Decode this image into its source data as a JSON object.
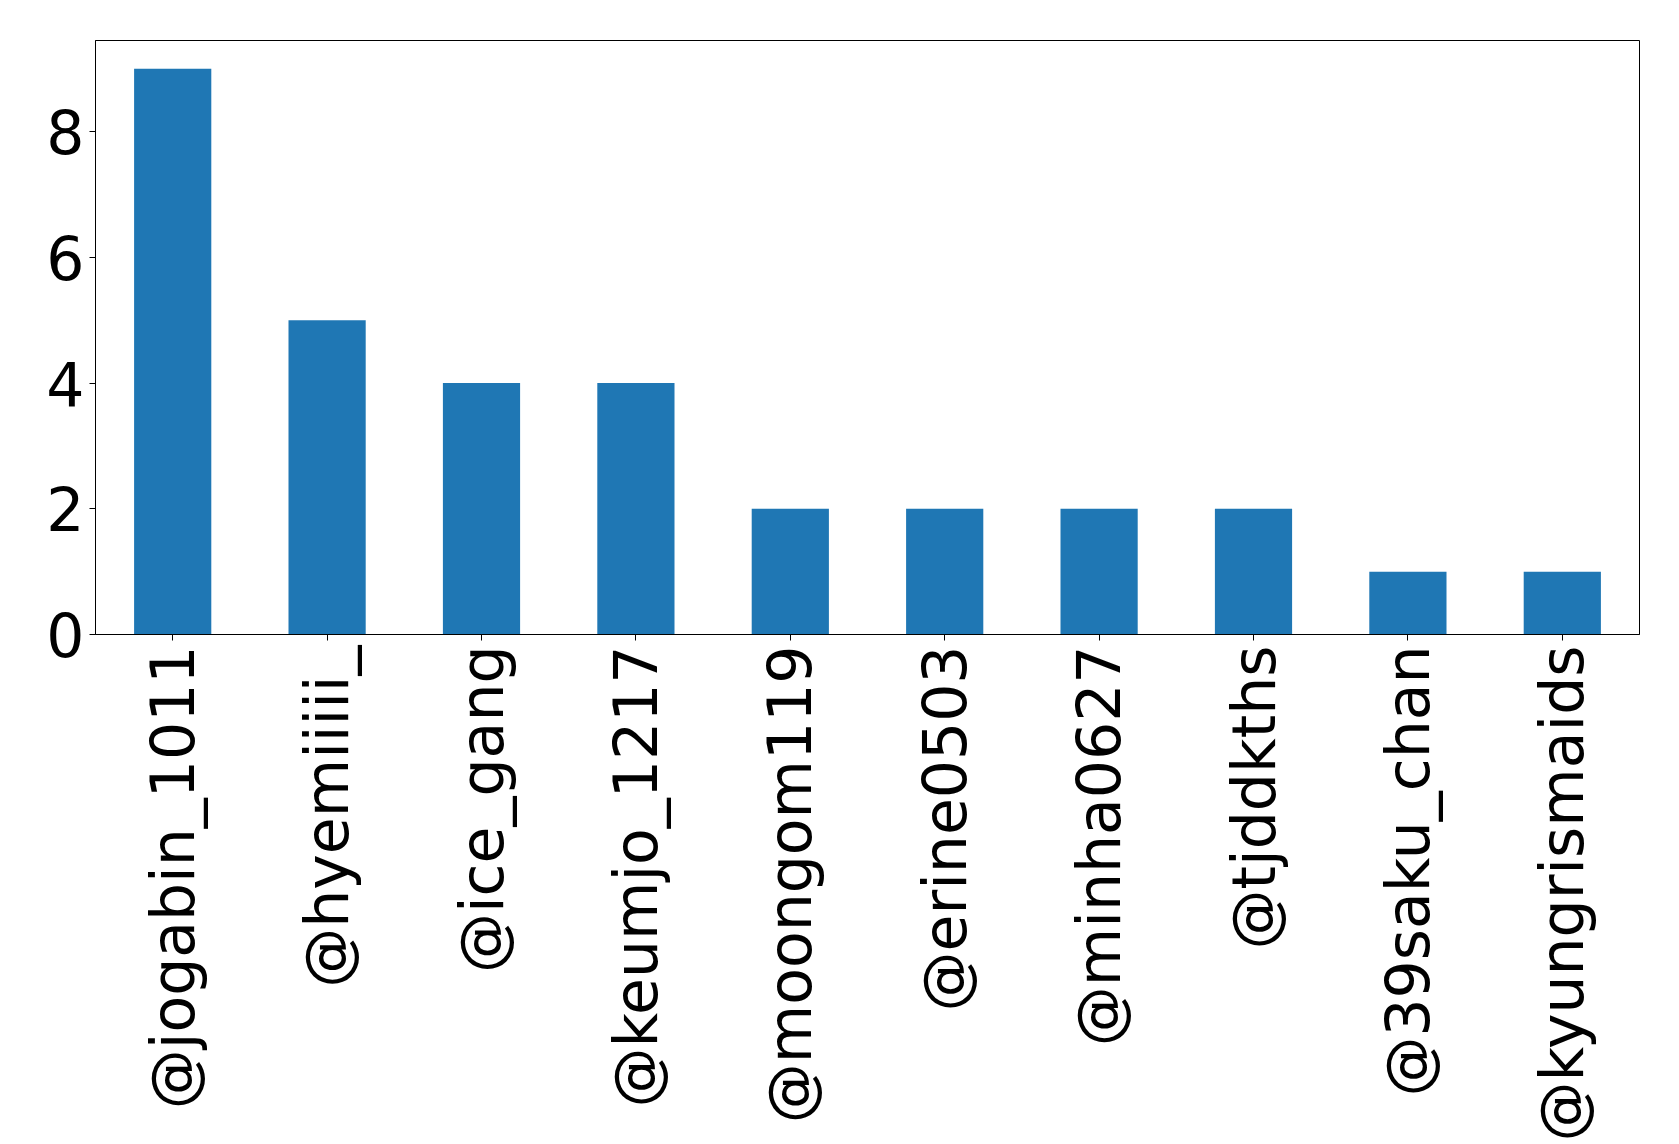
{
  "chart_data": {
    "type": "bar",
    "categories": [
      "@jogabin_1011",
      "@hyemiiiii_",
      "@ice_gang",
      "@keumjo_1217",
      "@moongom119",
      "@erine0503",
      "@minha0627",
      "@tjddkths",
      "@39saku_chan",
      "@kyungrismaids"
    ],
    "values": [
      9,
      5,
      4,
      4,
      2,
      2,
      2,
      2,
      1,
      1
    ],
    "color": "#1f77b4",
    "ylim": [
      0,
      9.45
    ],
    "yticks": [
      0,
      2,
      4,
      6,
      8
    ],
    "grid": false
  }
}
